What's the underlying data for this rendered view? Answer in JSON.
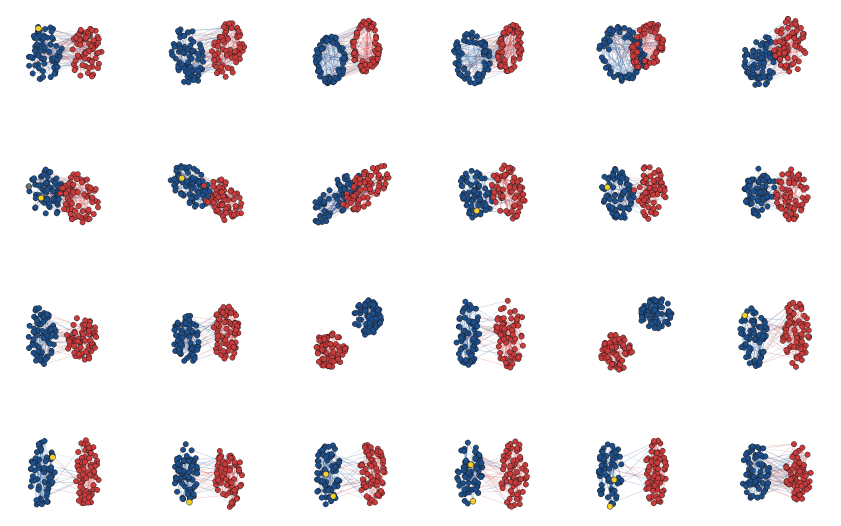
{
  "colors": {
    "background": "#ffffff",
    "blue_node": "#1c4f8c",
    "red_node": "#cc3b3b",
    "yellow_node": "#f2cf2b",
    "gray_node": "#6e6e6e",
    "node_stroke": "#1a1a1a",
    "blue_edge": "#2c5f9e",
    "red_edge": "#d34b4b",
    "gray_edge": "#9a9a9a"
  },
  "grid": {
    "rows": 4,
    "columns": 6
  },
  "panels": [
    {
      "id": "r1c1",
      "layout": "mixed-oval",
      "bridge": "dense",
      "highlight": [
        "yellow"
      ]
    },
    {
      "id": "r1c2",
      "layout": "mixed-oval",
      "bridge": "dense",
      "highlight": []
    },
    {
      "id": "r1c3",
      "layout": "ring",
      "bridge": "dense",
      "highlight": []
    },
    {
      "id": "r1c4",
      "layout": "ring",
      "bridge": "dense",
      "highlight": []
    },
    {
      "id": "r1c5",
      "layout": "ring",
      "bridge": "dense",
      "highlight": []
    },
    {
      "id": "r1c6",
      "layout": "mixed-oval",
      "bridge": "dense",
      "highlight": []
    },
    {
      "id": "r2c1",
      "layout": "mixed-oval",
      "bridge": "dense",
      "highlight": [
        "yellow",
        "gray"
      ]
    },
    {
      "id": "r2c2",
      "layout": "diagonal",
      "bridge": "dense",
      "highlight": [
        "yellow"
      ]
    },
    {
      "id": "r2c3",
      "layout": "diagonal",
      "bridge": "dense",
      "highlight": []
    },
    {
      "id": "r2c4",
      "layout": "mixed-oval",
      "bridge": "medium",
      "highlight": [
        "yellow"
      ]
    },
    {
      "id": "r2c5",
      "layout": "mixed-oval",
      "bridge": "medium",
      "highlight": [
        "yellow"
      ]
    },
    {
      "id": "r2c6",
      "layout": "mixed-oval",
      "bridge": "medium",
      "highlight": []
    },
    {
      "id": "r3c1",
      "layout": "split",
      "bridge": "medium",
      "highlight": []
    },
    {
      "id": "r3c2",
      "layout": "split",
      "bridge": "medium",
      "highlight": []
    },
    {
      "id": "r3c3",
      "layout": "separate",
      "bridge": "none",
      "highlight": []
    },
    {
      "id": "r3c4",
      "layout": "split",
      "bridge": "medium",
      "highlight": []
    },
    {
      "id": "r3c5",
      "layout": "separate",
      "bridge": "none",
      "highlight": []
    },
    {
      "id": "r3c6",
      "layout": "split",
      "bridge": "medium",
      "highlight": [
        "yellow"
      ]
    },
    {
      "id": "r4c1",
      "layout": "split",
      "bridge": "light",
      "highlight": [
        "yellow"
      ]
    },
    {
      "id": "r4c2",
      "layout": "split",
      "bridge": "medium",
      "highlight": [
        "yellow"
      ]
    },
    {
      "id": "r4c3",
      "layout": "split",
      "bridge": "medium",
      "highlight": [
        "yellow",
        "yellow"
      ]
    },
    {
      "id": "r4c4",
      "layout": "split",
      "bridge": "medium",
      "highlight": [
        "yellow",
        "yellow"
      ]
    },
    {
      "id": "r4c5",
      "layout": "split",
      "bridge": "light",
      "highlight": [
        "yellow",
        "yellow"
      ]
    },
    {
      "id": "r4c6",
      "layout": "split",
      "bridge": "dense",
      "highlight": []
    }
  ]
}
